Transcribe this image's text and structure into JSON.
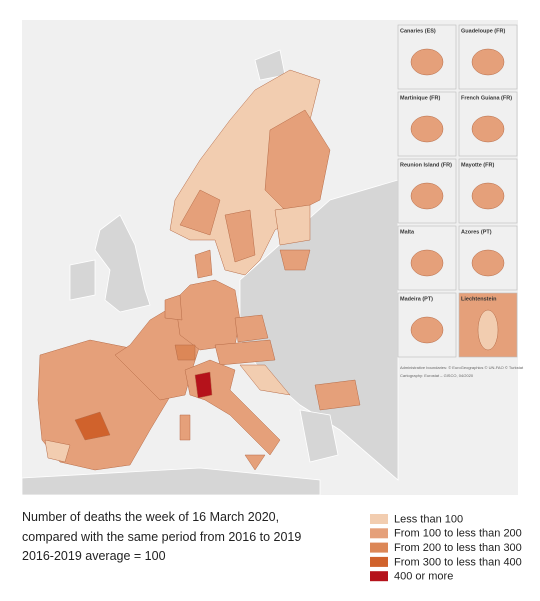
{
  "map": {
    "insets": [
      "Canaries (ES)",
      "Guadeloupe (FR)",
      "Martinique (FR)",
      "French Guiana (FR)",
      "Reunion Island (FR)",
      "Mayotte (FR)",
      "Malta",
      "Azores (PT)",
      "Madeira (PT)",
      "Liechtenstein"
    ],
    "credits": [
      "Administrative boundaries: © EuroGeographics © UN-FAO © Turkstat",
      "Cartography: Eurostat – GISCO, 04/2020"
    ]
  },
  "caption": [
    "Number of deaths the week of 16 March 2020,",
    "compared with the same period from 2016 to 2019",
    "2016-2019 average = 100"
  ],
  "legend": [
    {
      "label": "Less than 100",
      "color": "#f2cdb0"
    },
    {
      "label": "From 100 to less than 200",
      "color": "#e5a07a"
    },
    {
      "label": "From 200 to less than 300",
      "color": "#dc8757"
    },
    {
      "label": "From 300 to less than 400",
      "color": "#d0622c"
    },
    {
      "label": "400 or more",
      "color": "#b5121b"
    }
  ]
}
